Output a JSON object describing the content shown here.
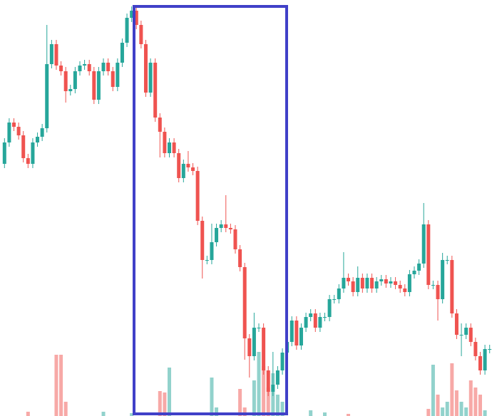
{
  "chart_data": {
    "type": "candlestick",
    "up_color": "#26a69a",
    "down_color": "#ef5350",
    "ylim": [
      0,
      584
    ],
    "volume_ylim": [
      0,
      100
    ],
    "open": [
      354,
      384,
      412,
      406,
      394,
      362,
      354,
      384,
      392,
      404,
      494,
      522,
      492,
      484,
      456,
      459,
      484,
      492,
      494,
      484,
      444,
      484,
      496,
      484,
      462,
      496,
      524,
      559,
      569,
      549,
      522,
      454,
      496,
      419,
      399,
      369,
      384,
      369,
      334,
      354,
      349,
      344,
      274,
      219,
      219,
      244,
      264,
      269,
      264,
      262,
      234,
      209,
      109,
      84,
      124,
      124,
      64,
      34,
      44,
      64,
      89,
      104,
      134,
      99,
      124,
      139,
      144,
      124,
      139,
      139,
      164,
      164,
      179,
      194,
      189,
      174,
      194,
      179,
      194,
      179,
      189,
      192,
      186,
      189,
      184,
      179,
      174,
      199,
      204,
      214,
      269,
      184,
      184,
      164,
      219,
      219,
      144,
      114,
      114,
      124,
      104,
      84,
      64,
      94
    ],
    "high": [
      390,
      418,
      418,
      412,
      400,
      368,
      390,
      398,
      410,
      549,
      528,
      528,
      498,
      490,
      465,
      490,
      498,
      500,
      500,
      490,
      490,
      502,
      502,
      490,
      502,
      530,
      565,
      575,
      575,
      555,
      528,
      502,
      502,
      425,
      405,
      390,
      390,
      375,
      360,
      372,
      355,
      350,
      280,
      225,
      270,
      270,
      275,
      310,
      270,
      268,
      240,
      215,
      115,
      145,
      130,
      130,
      70,
      90,
      70,
      95,
      110,
      140,
      140,
      130,
      145,
      150,
      150,
      145,
      145,
      170,
      170,
      185,
      230,
      200,
      195,
      210,
      200,
      200,
      200,
      195,
      198,
      198,
      195,
      195,
      190,
      185,
      205,
      210,
      220,
      299,
      275,
      190,
      190,
      229,
      225,
      225,
      150,
      130,
      130,
      130,
      110,
      90,
      100,
      100
    ],
    "low": [
      348,
      378,
      400,
      388,
      356,
      348,
      348,
      378,
      386,
      398,
      488,
      486,
      478,
      440,
      450,
      453,
      478,
      486,
      478,
      438,
      438,
      478,
      478,
      456,
      456,
      490,
      518,
      553,
      543,
      516,
      448,
      448,
      413,
      363,
      363,
      363,
      363,
      328,
      328,
      343,
      338,
      268,
      193,
      213,
      213,
      238,
      258,
      258,
      256,
      228,
      203,
      79,
      54,
      78,
      118,
      58,
      28,
      28,
      38,
      58,
      83,
      98,
      93,
      93,
      118,
      133,
      118,
      118,
      133,
      133,
      158,
      158,
      173,
      183,
      168,
      168,
      173,
      173,
      173,
      173,
      183,
      180,
      180,
      178,
      173,
      168,
      168,
      193,
      198,
      208,
      178,
      178,
      134,
      158,
      213,
      138,
      108,
      84,
      108,
      98,
      78,
      58,
      58,
      88
    ],
    "close": [
      384,
      412,
      406,
      394,
      362,
      354,
      384,
      392,
      404,
      494,
      522,
      492,
      484,
      456,
      459,
      484,
      492,
      494,
      484,
      444,
      484,
      496,
      484,
      462,
      496,
      524,
      559,
      569,
      549,
      522,
      454,
      496,
      419,
      399,
      369,
      384,
      369,
      334,
      354,
      349,
      344,
      274,
      219,
      219,
      244,
      264,
      269,
      264,
      262,
      234,
      209,
      109,
      84,
      124,
      124,
      64,
      34,
      44,
      64,
      89,
      104,
      134,
      99,
      124,
      139,
      144,
      124,
      139,
      139,
      164,
      164,
      179,
      194,
      189,
      174,
      194,
      179,
      194,
      179,
      189,
      192,
      186,
      189,
      184,
      179,
      174,
      199,
      204,
      214,
      269,
      184,
      184,
      164,
      219,
      219,
      144,
      114,
      114,
      124,
      104,
      84,
      64,
      94,
      94
    ],
    "volume": [
      0,
      0,
      0,
      0,
      0,
      6,
      0,
      0,
      0,
      0,
      0,
      86,
      86,
      20,
      0,
      0,
      0,
      0,
      0,
      0,
      0,
      6,
      0,
      0,
      0,
      0,
      0,
      4,
      0,
      0,
      0,
      0,
      0,
      35,
      33,
      68,
      0,
      0,
      0,
      0,
      0,
      0,
      0,
      0,
      54,
      12,
      0,
      0,
      0,
      0,
      38,
      12,
      0,
      50,
      90,
      70,
      40,
      60,
      30,
      20,
      0,
      0,
      0,
      0,
      0,
      8,
      0,
      0,
      5,
      0,
      0,
      0,
      0,
      3,
      0,
      0,
      0,
      0,
      0,
      0,
      0,
      0,
      0,
      0,
      0,
      0,
      0,
      0,
      0,
      0,
      10,
      72,
      30,
      12,
      20,
      74,
      36,
      20,
      12,
      50,
      40,
      30,
      8,
      0
    ]
  }
}
